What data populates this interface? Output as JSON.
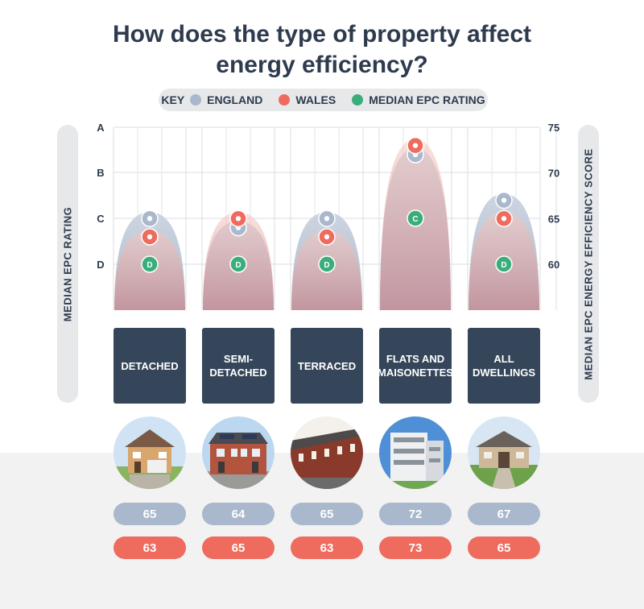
{
  "title_line1": "How does the type of property affect",
  "title_line2": "energy efficiency?",
  "key": {
    "label": "KEY",
    "items": [
      {
        "label": "ENGLAND",
        "color": "#a9b8cc"
      },
      {
        "label": "WALES",
        "color": "#ef6b5d"
      },
      {
        "label": "MEDIAN EPC RATING",
        "color": "#3aae7a"
      }
    ]
  },
  "left_axis_title": "MEDIAN EPC RATING",
  "right_axis_title": "MEDIAN EPC ENERGY EFFICIENCY SCORE",
  "chart_data": {
    "type": "scatter",
    "categories": [
      "DETACHED",
      "SEMI-\nDETACHED",
      "TERRACED",
      "FLATS AND\nMAISONETTES",
      "ALL\nDWELLINGS"
    ],
    "series": [
      {
        "name": "ENGLAND",
        "color": "#a9b8cc",
        "values": [
          65,
          64,
          65,
          72,
          67
        ]
      },
      {
        "name": "WALES",
        "color": "#ef6b5d",
        "values": [
          63,
          65,
          63,
          73,
          65
        ]
      }
    ],
    "median_epc_rating": [
      "D",
      "D",
      "D",
      "C",
      "D"
    ],
    "right_axis": {
      "ticks": [
        75,
        70,
        65,
        60
      ],
      "ylim": [
        60,
        75
      ]
    },
    "left_axis": {
      "ticks": [
        "A",
        "B",
        "C",
        "D"
      ]
    },
    "grid": true
  },
  "icons": [
    "house-photo-detached",
    "house-photo-semi-detached",
    "house-photo-terraced",
    "house-photo-flats",
    "house-photo-all-dwellings"
  ]
}
